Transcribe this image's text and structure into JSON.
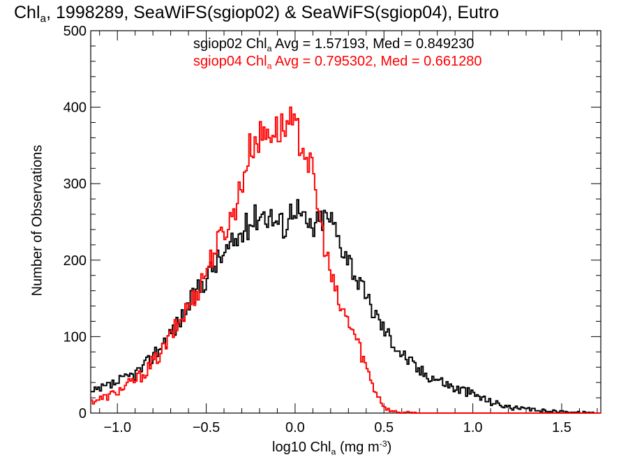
{
  "chart_data": {
    "type": "line",
    "title": {
      "pre": "Chl",
      "sub": "a",
      "post": ", 1998289, SeaWiFS(sgiop02) & SeaWiFS(sgiop04), Eutro"
    },
    "xlabel": {
      "pre": "log10 Chl",
      "sub": "a",
      "mid": " (mg m",
      "sup": "-3",
      "post": ")"
    },
    "ylabel": "Number of Observations",
    "xlim": [
      -1.15,
      1.72
    ],
    "ylim": [
      0,
      500
    ],
    "xticks": [
      -1.0,
      -0.5,
      0.0,
      0.5,
      1.0,
      1.5
    ],
    "xtick_labels": [
      "−1.0",
      "−0.5",
      "0.0",
      "0.5",
      "1.0",
      "1.5"
    ],
    "yticks": [
      0,
      100,
      200,
      300,
      400,
      500
    ],
    "ytick_labels": [
      "0",
      "100",
      "200",
      "300",
      "400",
      "500"
    ],
    "x_minor_step": 0.1,
    "y_minor_step": 20,
    "grid": false,
    "step_style": "histogram",
    "series": [
      {
        "legend": {
          "pre": "sgiop02 Chl",
          "sub": "a",
          "post": " Avg = 1.57193, Med = 0.849230"
        },
        "color": "#000000",
        "x": [
          -1.15,
          -1.05,
          -0.95,
          -0.85,
          -0.75,
          -0.65,
          -0.55,
          -0.45,
          -0.35,
          -0.25,
          -0.2,
          -0.15,
          -0.1,
          -0.05,
          -0.02,
          0.0,
          0.05,
          0.1,
          0.15,
          0.2,
          0.25,
          0.3,
          0.35,
          0.4,
          0.45,
          0.5,
          0.6,
          0.7,
          0.8,
          0.9,
          0.95,
          1.0,
          1.1,
          1.2,
          1.3,
          1.4,
          1.5,
          1.6,
          1.72
        ],
        "values": [
          25,
          35,
          45,
          60,
          90,
          120,
          160,
          195,
          220,
          250,
          262,
          260,
          250,
          245,
          268,
          275,
          250,
          240,
          255,
          255,
          225,
          205,
          175,
          150,
          130,
          110,
          78,
          55,
          45,
          32,
          30,
          25,
          15,
          8,
          5,
          3,
          2,
          1,
          0
        ]
      },
      {
        "legend": {
          "pre": "sgiop04 Chl",
          "sub": "a",
          "post": " Avg = 0.795302, Med = 0.661280"
        },
        "color": "#ff0000",
        "x": [
          -1.15,
          -1.05,
          -0.95,
          -0.85,
          -0.75,
          -0.65,
          -0.55,
          -0.45,
          -0.35,
          -0.3,
          -0.25,
          -0.2,
          -0.15,
          -0.1,
          -0.05,
          -0.02,
          0.0,
          0.05,
          0.1,
          0.15,
          0.2,
          0.25,
          0.3,
          0.35,
          0.4,
          0.45,
          0.5,
          0.52,
          0.55,
          0.6,
          0.7,
          0.8,
          1.0,
          1.72
        ],
        "values": [
          15,
          22,
          35,
          52,
          80,
          120,
          160,
          215,
          260,
          300,
          350,
          360,
          370,
          370,
          375,
          378,
          370,
          350,
          310,
          240,
          180,
          140,
          120,
          95,
          60,
          30,
          10,
          5,
          2,
          1,
          0,
          0,
          0,
          0
        ]
      }
    ]
  }
}
